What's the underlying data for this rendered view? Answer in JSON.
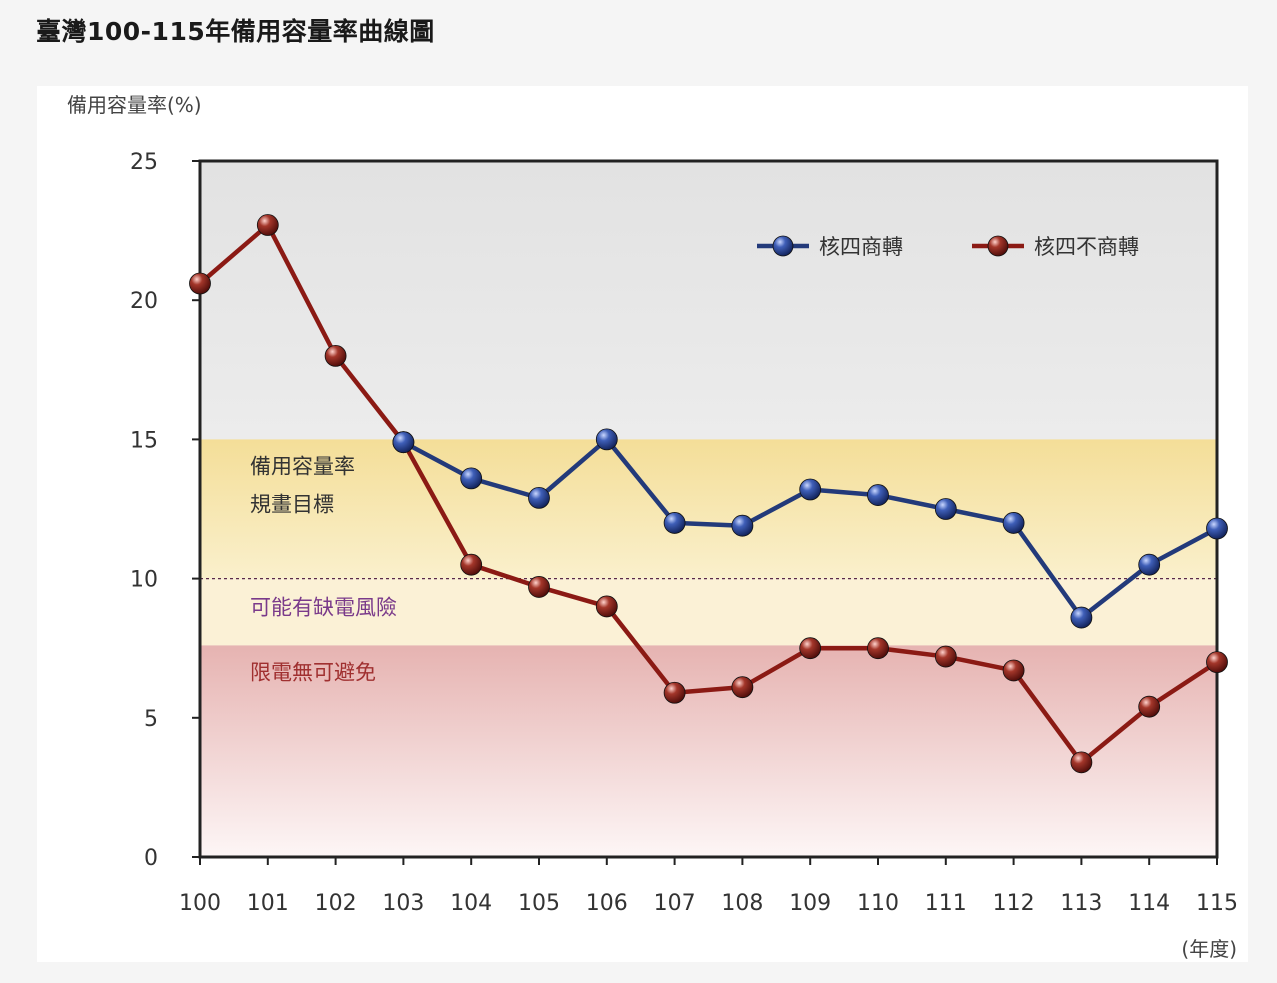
{
  "title": "臺灣100-115年備用容量率曲線圖",
  "chart_data": {
    "type": "line",
    "ylabel": "備用容量率(%)",
    "xlabel": "(年度)",
    "ylim": [
      0,
      25
    ],
    "yticks": [
      0,
      5,
      10,
      15,
      20,
      25
    ],
    "categories": [
      "100",
      "101",
      "102",
      "103",
      "104",
      "105",
      "106",
      "107",
      "108",
      "109",
      "110",
      "111",
      "112",
      "113",
      "114",
      "115"
    ],
    "series": [
      {
        "name": "核四商轉",
        "color": "#233a7a",
        "values": [
          null,
          null,
          null,
          14.9,
          13.6,
          12.9,
          15.0,
          12.0,
          11.9,
          13.2,
          13.0,
          12.5,
          12.0,
          8.6,
          10.5,
          11.8
        ]
      },
      {
        "name": "核四不商轉",
        "color": "#8b1a14",
        "values": [
          20.6,
          22.7,
          18.0,
          14.9,
          10.5,
          9.7,
          9.0,
          5.9,
          6.1,
          7.5,
          7.5,
          7.2,
          6.7,
          3.4,
          5.4,
          7.0
        ]
      }
    ],
    "zones": [
      {
        "from": 10,
        "to": 15,
        "color": "#f6e1a0",
        "label_line1": "備用容量率",
        "label_line2": "規畫目標",
        "label_color": "#333333"
      },
      {
        "from": 7.6,
        "to": 10,
        "color": "#fbf1d6",
        "label_line1": "可能有缺電風險",
        "label_line2": "",
        "label_color": "#7a3a8a"
      },
      {
        "from": 0,
        "to": 7.6,
        "color": "#ebbcba",
        "label_line1": "限電無可避免",
        "label_line2": "",
        "label_color": "#a03030"
      }
    ],
    "reference_line": 10,
    "legend_position": "top-right"
  }
}
